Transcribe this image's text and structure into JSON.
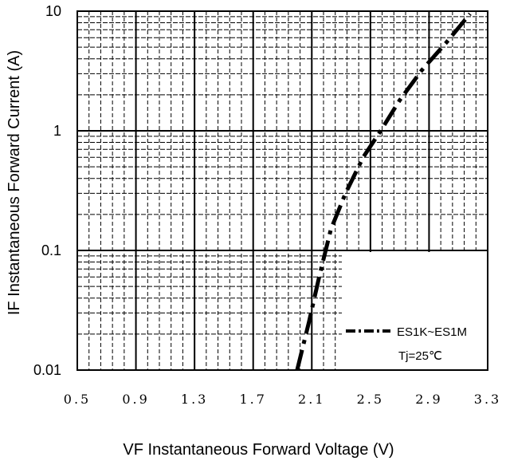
{
  "chart_data": {
    "type": "line",
    "xlabel": "VF  Instantaneous Forward Voltage (V)",
    "ylabel": "IF  Instantaneous Forward Current (A)",
    "x_ticks": [
      0.5,
      0.9,
      1.3,
      1.7,
      2.1,
      2.5,
      2.9,
      3.3
    ],
    "x_tick_labels": [
      "0.5",
      "0.9",
      "1.3",
      "1.7",
      "2.1",
      "2.5",
      "2.9",
      "3.3"
    ],
    "xlim": [
      0.5,
      3.3
    ],
    "y_scale": "log",
    "ylim": [
      0.01,
      10
    ],
    "y_ticks": [
      0.01,
      0.1,
      1,
      10
    ],
    "y_tick_labels": [
      "0.01",
      "0.1",
      "1",
      "10"
    ],
    "grid": true,
    "legend_position": "bottom-right",
    "series": [
      {
        "name": "ES1K~ES1M",
        "style": "dash-dot",
        "color": "#000000",
        "x": [
          2.0,
          2.08,
          2.15,
          2.23,
          2.33,
          2.45,
          2.57,
          2.7,
          2.85,
          3.02,
          3.18
        ],
        "y": [
          0.01,
          0.025,
          0.06,
          0.15,
          0.3,
          0.6,
          1.0,
          1.8,
          3.2,
          5.5,
          9.5
        ]
      }
    ],
    "annotations": [
      "Tj=25℃"
    ]
  }
}
